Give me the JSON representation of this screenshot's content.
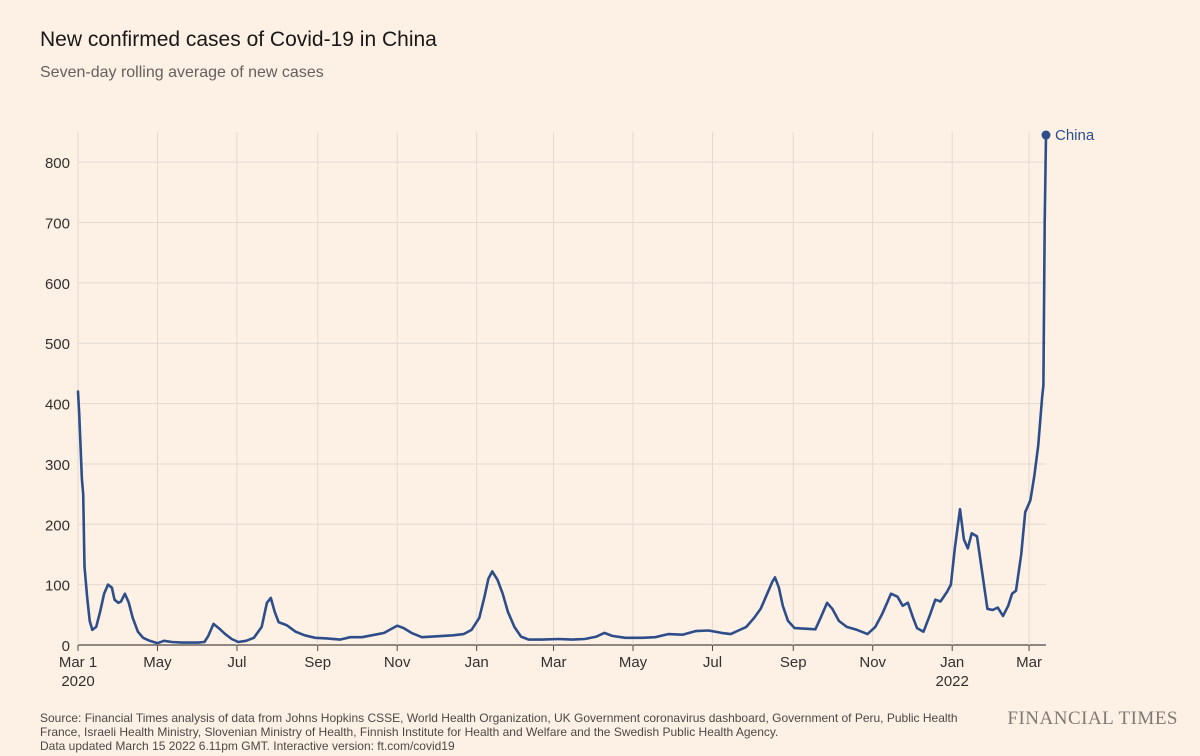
{
  "title": "New confirmed cases of Covid-19 in China",
  "subtitle": "Seven-day rolling average of new cases",
  "source_lines": [
    "Source: Financial Times analysis of data from Johns Hopkins CSSE, World Health Organization, UK Government coronavirus dashboard, Government of Peru, Public Health",
    "France, Israeli Health Ministry, Slovenian Ministry of Health, Finnish Institute for Health and Welfare and the Swedish Public Health Agency.",
    "Data updated March 15 2022 6.11pm GMT. Interactive version: ft.com/covid19"
  ],
  "brand": "FINANCIAL TIMES",
  "colors": {
    "background": "#fdf1e6",
    "line": "#2e4e8a",
    "grid": "#e4d9cf",
    "axis": "#4d4845",
    "text": "#33302e"
  },
  "chart_data": {
    "type": "line",
    "ylim": [
      0,
      850
    ],
    "yticks": [
      0,
      100,
      200,
      300,
      400,
      500,
      600,
      700,
      800
    ],
    "xlim": [
      "2020-03-01",
      "2022-03-14"
    ],
    "xticks": [
      {
        "date": "2020-03-01",
        "label": "Mar 1",
        "sublabel": "2020"
      },
      {
        "date": "2020-05-01",
        "label": "May"
      },
      {
        "date": "2020-07-01",
        "label": "Jul"
      },
      {
        "date": "2020-09-01",
        "label": "Sep"
      },
      {
        "date": "2020-11-01",
        "label": "Nov"
      },
      {
        "date": "2021-01-01",
        "label": "Jan"
      },
      {
        "date": "2021-03-01",
        "label": "Mar"
      },
      {
        "date": "2021-05-01",
        "label": "May"
      },
      {
        "date": "2021-07-01",
        "label": "Jul"
      },
      {
        "date": "2021-09-01",
        "label": "Sep"
      },
      {
        "date": "2021-11-01",
        "label": "Nov"
      },
      {
        "date": "2022-01-01",
        "label": "Jan",
        "sublabel": "2022"
      },
      {
        "date": "2022-03-01",
        "label": "Mar"
      }
    ],
    "grid": true,
    "series": [
      {
        "name": "China",
        "end_label": "China",
        "points": [
          [
            "2020-03-01",
            420
          ],
          [
            "2020-03-02",
            380
          ],
          [
            "2020-03-04",
            275
          ],
          [
            "2020-03-05",
            250
          ],
          [
            "2020-03-06",
            130
          ],
          [
            "2020-03-08",
            80
          ],
          [
            "2020-03-10",
            40
          ],
          [
            "2020-03-12",
            25
          ],
          [
            "2020-03-15",
            30
          ],
          [
            "2020-03-18",
            55
          ],
          [
            "2020-03-21",
            85
          ],
          [
            "2020-03-24",
            100
          ],
          [
            "2020-03-27",
            95
          ],
          [
            "2020-03-29",
            75
          ],
          [
            "2020-04-01",
            70
          ],
          [
            "2020-04-03",
            72
          ],
          [
            "2020-04-06",
            85
          ],
          [
            "2020-04-09",
            70
          ],
          [
            "2020-04-12",
            45
          ],
          [
            "2020-04-16",
            22
          ],
          [
            "2020-04-20",
            12
          ],
          [
            "2020-04-25",
            7
          ],
          [
            "2020-05-01",
            3
          ],
          [
            "2020-05-06",
            7
          ],
          [
            "2020-05-12",
            5
          ],
          [
            "2020-05-20",
            4
          ],
          [
            "2020-06-01",
            4
          ],
          [
            "2020-06-06",
            5
          ],
          [
            "2020-06-09",
            15
          ],
          [
            "2020-06-13",
            35
          ],
          [
            "2020-06-17",
            28
          ],
          [
            "2020-06-22",
            18
          ],
          [
            "2020-06-27",
            10
          ],
          [
            "2020-07-02",
            5
          ],
          [
            "2020-07-08",
            7
          ],
          [
            "2020-07-14",
            12
          ],
          [
            "2020-07-20",
            30
          ],
          [
            "2020-07-24",
            70
          ],
          [
            "2020-07-27",
            78
          ],
          [
            "2020-07-30",
            55
          ],
          [
            "2020-08-02",
            38
          ],
          [
            "2020-08-08",
            33
          ],
          [
            "2020-08-15",
            22
          ],
          [
            "2020-08-22",
            16
          ],
          [
            "2020-08-30",
            12
          ],
          [
            "2020-09-08",
            11
          ],
          [
            "2020-09-18",
            9
          ],
          [
            "2020-09-26",
            13
          ],
          [
            "2020-10-05",
            13
          ],
          [
            "2020-10-15",
            17
          ],
          [
            "2020-10-22",
            20
          ],
          [
            "2020-10-27",
            26
          ],
          [
            "2020-11-01",
            32
          ],
          [
            "2020-11-06",
            28
          ],
          [
            "2020-11-12",
            20
          ],
          [
            "2020-11-20",
            13
          ],
          [
            "2020-11-28",
            14
          ],
          [
            "2020-12-06",
            15
          ],
          [
            "2020-12-14",
            16
          ],
          [
            "2020-12-22",
            18
          ],
          [
            "2020-12-28",
            25
          ],
          [
            "2021-01-03",
            45
          ],
          [
            "2021-01-07",
            80
          ],
          [
            "2021-01-10",
            110
          ],
          [
            "2021-01-13",
            122
          ],
          [
            "2021-01-17",
            108
          ],
          [
            "2021-01-21",
            85
          ],
          [
            "2021-01-25",
            55
          ],
          [
            "2021-01-30",
            30
          ],
          [
            "2021-02-04",
            14
          ],
          [
            "2021-02-10",
            9
          ],
          [
            "2021-02-20",
            9
          ],
          [
            "2021-03-05",
            10
          ],
          [
            "2021-03-15",
            9
          ],
          [
            "2021-03-25",
            10
          ],
          [
            "2021-04-03",
            14
          ],
          [
            "2021-04-09",
            20
          ],
          [
            "2021-04-15",
            15
          ],
          [
            "2021-04-25",
            12
          ],
          [
            "2021-05-08",
            12
          ],
          [
            "2021-05-18",
            13
          ],
          [
            "2021-05-28",
            18
          ],
          [
            "2021-06-08",
            17
          ],
          [
            "2021-06-18",
            23
          ],
          [
            "2021-06-28",
            24
          ],
          [
            "2021-07-08",
            20
          ],
          [
            "2021-07-15",
            18
          ],
          [
            "2021-07-21",
            24
          ],
          [
            "2021-07-27",
            30
          ],
          [
            "2021-08-02",
            45
          ],
          [
            "2021-08-07",
            60
          ],
          [
            "2021-08-12",
            85
          ],
          [
            "2021-08-16",
            105
          ],
          [
            "2021-08-18",
            112
          ],
          [
            "2021-08-21",
            95
          ],
          [
            "2021-08-24",
            65
          ],
          [
            "2021-08-28",
            40
          ],
          [
            "2021-09-02",
            28
          ],
          [
            "2021-09-10",
            27
          ],
          [
            "2021-09-18",
            26
          ],
          [
            "2021-09-22",
            45
          ],
          [
            "2021-09-27",
            70
          ],
          [
            "2021-10-01",
            60
          ],
          [
            "2021-10-06",
            40
          ],
          [
            "2021-10-12",
            30
          ],
          [
            "2021-10-20",
            25
          ],
          [
            "2021-10-28",
            18
          ],
          [
            "2021-11-03",
            30
          ],
          [
            "2021-11-08",
            50
          ],
          [
            "2021-11-12",
            70
          ],
          [
            "2021-11-15",
            85
          ],
          [
            "2021-11-20",
            80
          ],
          [
            "2021-11-24",
            65
          ],
          [
            "2021-11-28",
            70
          ],
          [
            "2021-12-02",
            45
          ],
          [
            "2021-12-05",
            28
          ],
          [
            "2021-12-10",
            22
          ],
          [
            "2021-12-15",
            50
          ],
          [
            "2021-12-19",
            75
          ],
          [
            "2021-12-23",
            72
          ],
          [
            "2021-12-28",
            88
          ],
          [
            "2021-12-31",
            100
          ],
          [
            "2022-01-03",
            160
          ],
          [
            "2022-01-07",
            225
          ],
          [
            "2022-01-10",
            175
          ],
          [
            "2022-01-13",
            160
          ],
          [
            "2022-01-16",
            185
          ],
          [
            "2022-01-20",
            180
          ],
          [
            "2022-01-24",
            120
          ],
          [
            "2022-01-28",
            60
          ],
          [
            "2022-02-01",
            58
          ],
          [
            "2022-02-05",
            62
          ],
          [
            "2022-02-09",
            48
          ],
          [
            "2022-02-13",
            65
          ],
          [
            "2022-02-16",
            85
          ],
          [
            "2022-02-19",
            90
          ],
          [
            "2022-02-23",
            150
          ],
          [
            "2022-02-26",
            220
          ],
          [
            "2022-03-02",
            240
          ],
          [
            "2022-03-05",
            280
          ],
          [
            "2022-03-08",
            330
          ],
          [
            "2022-03-11",
            410
          ],
          [
            "2022-03-12",
            430
          ],
          [
            "2022-03-13",
            700
          ],
          [
            "2022-03-14",
            845
          ]
        ]
      }
    ]
  }
}
